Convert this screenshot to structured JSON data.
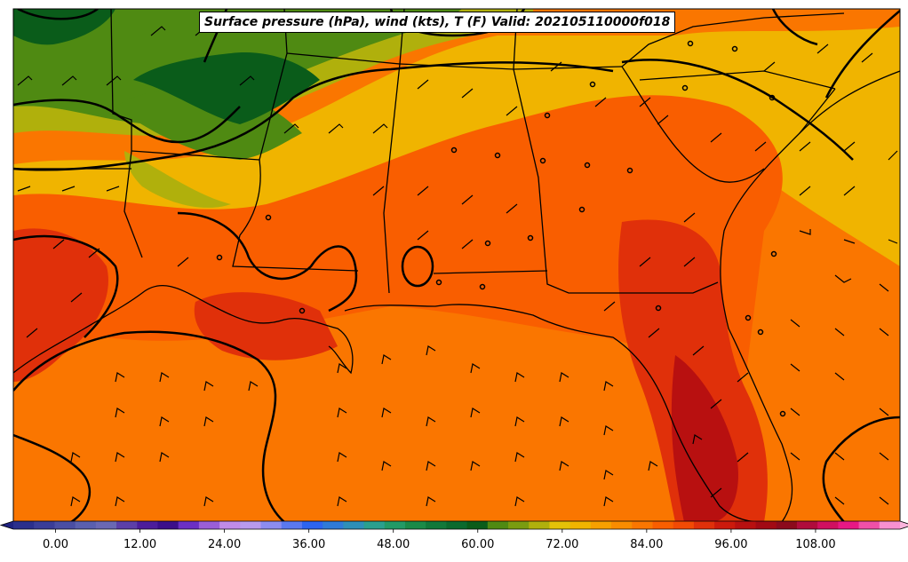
{
  "title": "Surface pressure (hPa), wind (kts), T (F) Valid: 202105110000f018",
  "colorbar": {
    "min": -6,
    "max": 120,
    "step": 3,
    "tick_labels": [
      "0.00",
      "12.00",
      "24.00",
      "36.00",
      "48.00",
      "60.00",
      "72.00",
      "84.00",
      "96.00",
      "108.00"
    ],
    "colors": [
      "#2b2f8c",
      "#3a3d98",
      "#4a4ea3",
      "#5a5fae",
      "#6a68b3",
      "#5c3fa8",
      "#4c1d9b",
      "#3b0f8a",
      "#6b2fc4",
      "#9a5ed8",
      "#c08be8",
      "#b89aee",
      "#8c8cf0",
      "#5a78f0",
      "#2d64f0",
      "#2f7ad8",
      "#2e8fb8",
      "#2aa08e",
      "#229a66",
      "#1a8a48",
      "#11783a",
      "#0b6a2e",
      "#0a5c1a",
      "#4f8a12",
      "#7a9c10",
      "#b0b00c",
      "#e4c208",
      "#f0b400",
      "#f7a000",
      "#f98c00",
      "#fa7600",
      "#f95e00",
      "#f24a04",
      "#e0300a",
      "#cc1a0c",
      "#b81010",
      "#a20a14",
      "#8c0a1c",
      "#b00c3c",
      "#d01060",
      "#e81884",
      "#f050a8",
      "#f890d0"
    ],
    "extend_low_color": "#1f2280",
    "extend_high_color": "#fab4dc"
  },
  "map": {
    "ocean_color": "#fa7600",
    "region_colors": {
      "cold_north": "#0a5c1a",
      "cool_north": "#4f8a12",
      "mild": "#b0b00c",
      "warm": "#f0b400",
      "hot": "#f95e00",
      "very_hot": "#e0300a",
      "hottest": "#b81010"
    }
  }
}
